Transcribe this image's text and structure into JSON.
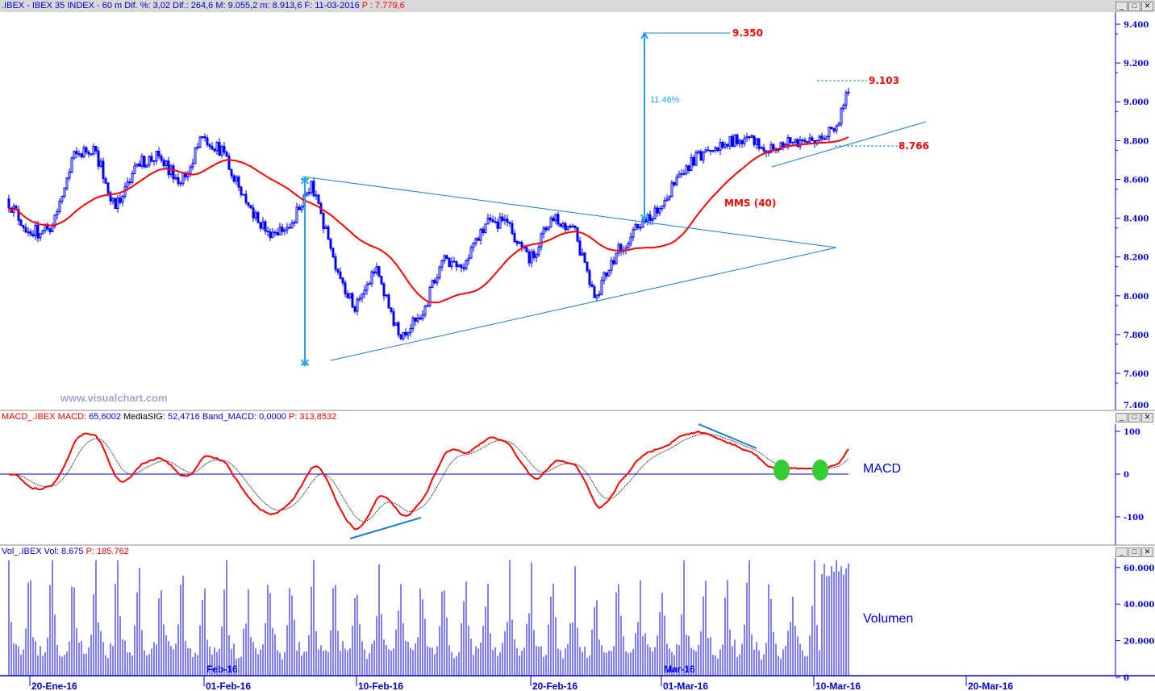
{
  "header": {
    "symbol": ".IBEX - IBEX 35 INDEX - ",
    "stats": " 60 m  Dif. %: 3,02  Dif.: 264,6  M: 9.055,2  m: 8.913,6  F: 11-03-2016 ",
    "price": "P : 7.779,6"
  },
  "macd_header": {
    "name": "MACD_.IBEX MACD: ",
    "macd": "65,6002",
    "sig_label": " MediaSIG: ",
    "sig": "52,4716",
    "band_label": " Band_MACD: ",
    "band": "0,0000",
    "p": " P: 313,8532"
  },
  "vol_header": {
    "name": "Vol_.IBEX ",
    "vol": "Vol: 8.675",
    "p": " P: 185.762"
  },
  "window_buttons": {
    "minimize": "_",
    "maximize": "□",
    "close": "✕"
  },
  "watermark": "www.visualchart.com",
  "colors": {
    "price": "#0000ff",
    "mms": "#ff0000",
    "trendline": "#1a7fd4",
    "arrow": "#22a2ff",
    "macd": "#ff0000",
    "signal": "#000000",
    "volume": "#0000ff",
    "highlight": "#33cc33"
  },
  "annotations": {
    "target": "9.350",
    "percent": "11.46%",
    "high": "9.103",
    "support": "8.766",
    "mms_label": "MMS (40)",
    "macd_label": "MACD",
    "vol_label": "Volumen"
  },
  "chart_data": [
    {
      "type": "candlestick",
      "title": ".IBEX - IBEX 35 INDEX - 60 m",
      "interval": "60 m",
      "ylim": [
        7400,
        9450
      ],
      "y_ticks": [
        "9.400",
        "9.200",
        "9.000",
        "8.800",
        "8.600",
        "8.400",
        "8.200",
        "8.000",
        "7.800",
        "7.600",
        "7.400"
      ],
      "y_tick_values": [
        9400,
        9200,
        9000,
        8800,
        8600,
        8400,
        8200,
        8000,
        7800,
        7600,
        7400
      ],
      "x_ticks": [
        {
          "label": "20-Ene-16",
          "date": "2016-01-20"
        },
        {
          "label": "01-Feb-16",
          "date": "2016-02-01"
        },
        {
          "label": "10-Feb-16",
          "date": "2016-02-10"
        },
        {
          "label": "20-Feb-16",
          "date": "2016-02-20"
        },
        {
          "label": "01-Mar-16",
          "date": "2016-03-01"
        },
        {
          "label": "10-Mar-16",
          "date": "2016-03-10"
        },
        {
          "label": "20-Mar-16",
          "date": "2016-03-20"
        }
      ],
      "month_labels": [
        {
          "label": "Feb-16",
          "date": "2016-02-01"
        },
        {
          "label": "Mar-16",
          "date": "2016-03-01"
        }
      ],
      "daily_close_approx": [
        {
          "date": "2016-01-18",
          "close": 8500
        },
        {
          "date": "2016-01-19",
          "close": 8330
        },
        {
          "date": "2016-01-20",
          "close": 8330
        },
        {
          "date": "2016-01-21",
          "close": 8710
        },
        {
          "date": "2016-01-22",
          "close": 8770
        },
        {
          "date": "2016-01-25",
          "close": 8450
        },
        {
          "date": "2016-01-26",
          "close": 8680
        },
        {
          "date": "2016-01-27",
          "close": 8720
        },
        {
          "date": "2016-01-28",
          "close": 8580
        },
        {
          "date": "2016-01-29",
          "close": 8820
        },
        {
          "date": "2016-02-01",
          "close": 8740
        },
        {
          "date": "2016-02-02",
          "close": 8480
        },
        {
          "date": "2016-02-03",
          "close": 8330
        },
        {
          "date": "2016-02-04",
          "close": 8350
        },
        {
          "date": "2016-02-05",
          "close": 8590
        },
        {
          "date": "2016-02-08",
          "close": 8200
        },
        {
          "date": "2016-02-09",
          "close": 7920
        },
        {
          "date": "2016-02-10",
          "close": 8150
        },
        {
          "date": "2016-02-11",
          "close": 7800
        },
        {
          "date": "2016-02-12",
          "close": 7880
        },
        {
          "date": "2016-02-15",
          "close": 8180
        },
        {
          "date": "2016-02-16",
          "close": 8140
        },
        {
          "date": "2016-02-17",
          "close": 8370
        },
        {
          "date": "2016-02-18",
          "close": 8380
        },
        {
          "date": "2016-02-19",
          "close": 8170
        },
        {
          "date": "2016-02-22",
          "close": 8400
        },
        {
          "date": "2016-02-23",
          "close": 8360
        },
        {
          "date": "2016-02-24",
          "close": 7990
        },
        {
          "date": "2016-02-25",
          "close": 8220
        },
        {
          "date": "2016-02-26",
          "close": 8350
        },
        {
          "date": "2016-02-29",
          "close": 8450
        },
        {
          "date": "2016-03-01",
          "close": 8630
        },
        {
          "date": "2016-03-02",
          "close": 8740
        },
        {
          "date": "2016-03-03",
          "close": 8780
        },
        {
          "date": "2016-03-04",
          "close": 8820
        },
        {
          "date": "2016-03-07",
          "close": 8740
        },
        {
          "date": "2016-03-08",
          "close": 8790
        },
        {
          "date": "2016-03-09",
          "close": 8800
        },
        {
          "date": "2016-03-10",
          "close": 8850
        },
        {
          "date": "2016-03-11",
          "close": 9050
        }
      ],
      "indicator": "MMS (40)",
      "levels": [
        9350,
        9103,
        8766
      ]
    },
    {
      "type": "line",
      "title": "MACD",
      "series": [
        {
          "name": "MACD"
        },
        {
          "name": "MediaSIG"
        }
      ],
      "ylim": [
        -160,
        120
      ],
      "y_ticks": [
        "100",
        "0",
        "-100"
      ],
      "y_tick_values": [
        100,
        0,
        -100
      ],
      "last_values": {
        "MACD": 65.6002,
        "MediaSIG": 52.4716,
        "Band_MACD": 0
      }
    },
    {
      "type": "bar",
      "title": "Volumen",
      "ylim": [
        0,
        65000
      ],
      "y_ticks": [
        "60.000",
        "40.000",
        "20.000",
        "0"
      ],
      "y_tick_values": [
        60000,
        40000,
        20000,
        0
      ],
      "hourly_profile_approx": [
        62000,
        30000,
        22000,
        18000,
        15000,
        14000,
        17000,
        26000,
        45000
      ]
    }
  ]
}
